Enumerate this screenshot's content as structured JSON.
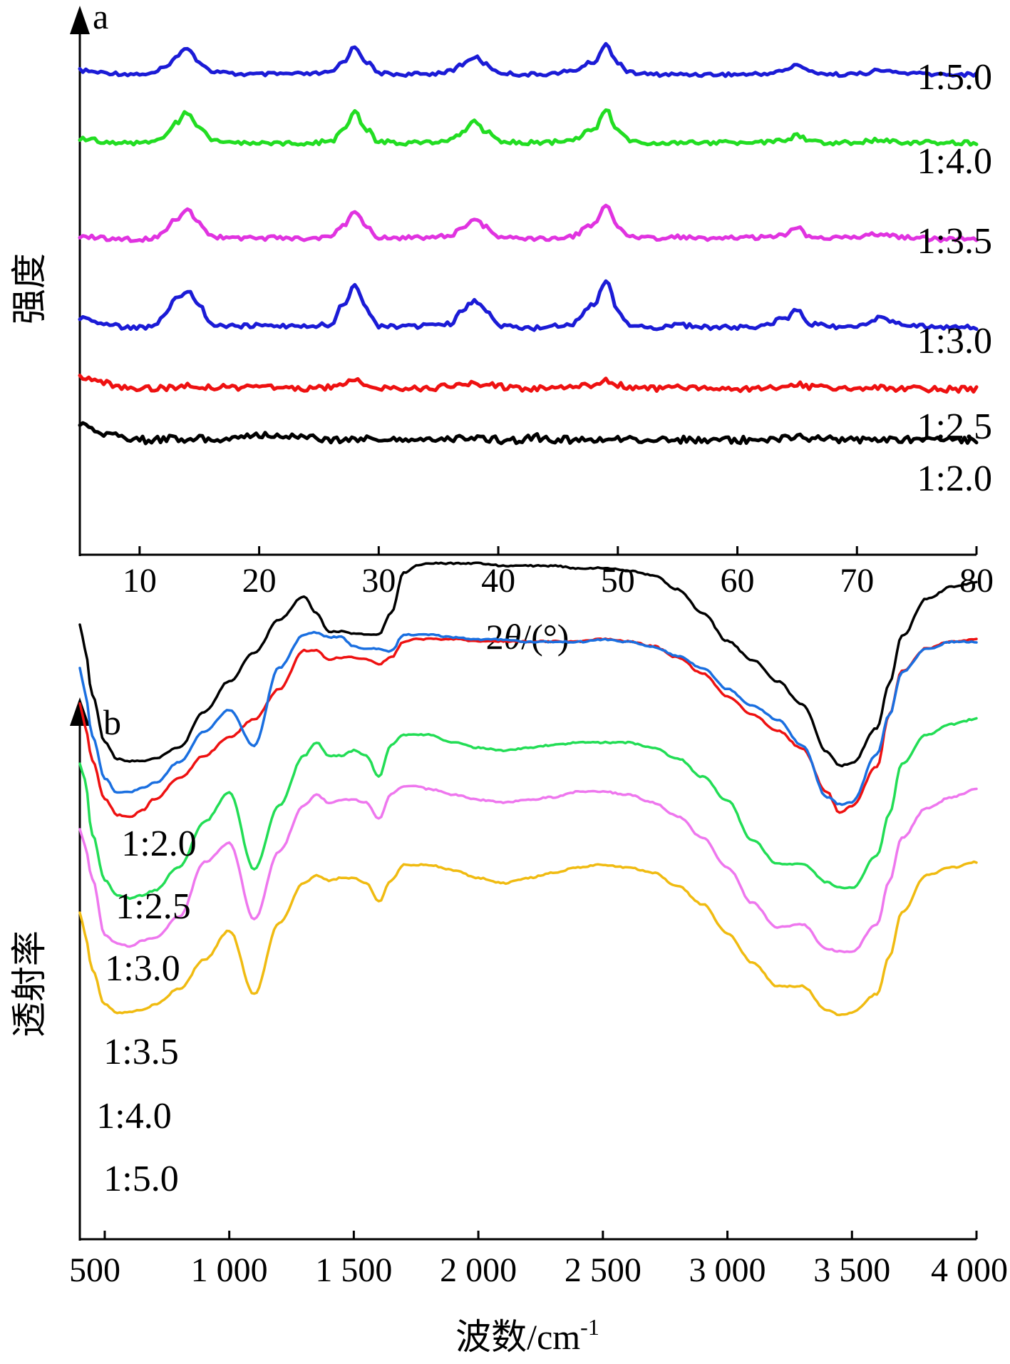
{
  "chart_data": [
    {
      "type": "line",
      "panel": "a",
      "xlabel": "2θ/(°)",
      "ylabel": "强度",
      "xlim": [
        5,
        80
      ],
      "xticks": [
        10,
        20,
        30,
        40,
        50,
        60,
        70,
        80
      ],
      "x": [
        5,
        7,
        9,
        11,
        12,
        13,
        14,
        15,
        16,
        18,
        20,
        22,
        24,
        26,
        27,
        28,
        29,
        30,
        32,
        34,
        36,
        37,
        38,
        39,
        40,
        42,
        43,
        44,
        46,
        48,
        49,
        50,
        51,
        53,
        55,
        58,
        60,
        62,
        64,
        65,
        66,
        68,
        70,
        72,
        74,
        77,
        80
      ],
      "series": [
        {
          "name": "1:5.0",
          "color": "#1b1bd6",
          "values": [
            11,
            10.5,
            10.2,
            10.2,
            11.5,
            14,
            16.5,
            13,
            10.8,
            10.2,
            10.1,
            10.2,
            10.2,
            10.5,
            13,
            16.5,
            13,
            10.4,
            10.1,
            10.2,
            10.8,
            12.5,
            14.2,
            12.5,
            10.5,
            10.1,
            10.1,
            10.2,
            10.8,
            13,
            17,
            13,
            10.5,
            10.1,
            10.1,
            10.1,
            10.1,
            10.2,
            11,
            12.5,
            10.8,
            10.1,
            10.2,
            11,
            10.4,
            10.1,
            10.1
          ]
        },
        {
          "name": "1:4.0",
          "color": "#22dd22",
          "values": [
            8,
            7.5,
            7.2,
            7.2,
            8.4,
            10.6,
            12.6,
            10.2,
            7.6,
            7.3,
            7.2,
            7.2,
            7.2,
            7.4,
            9.5,
            12.5,
            9.5,
            7.4,
            7.2,
            7.3,
            7.6,
            9,
            10.8,
            9.2,
            7.5,
            7.2,
            7.3,
            7.3,
            7.6,
            9.5,
            13,
            9.5,
            7.5,
            7.2,
            7.3,
            7.2,
            7.2,
            7.3,
            7.6,
            8.5,
            7.6,
            7.2,
            7.3,
            7.8,
            7.3,
            7.2,
            7.2
          ]
        },
        {
          "name": "1:3.5",
          "color": "#e033e0",
          "values": [
            5.4,
            5,
            4.8,
            4.8,
            6,
            8.3,
            10,
            7.6,
            5.2,
            5,
            5,
            5,
            5,
            5.2,
            7.2,
            9.8,
            7.2,
            5.1,
            5,
            5.1,
            5.5,
            7,
            8.6,
            7,
            5.2,
            4.8,
            4.8,
            4.9,
            5.3,
            7.4,
            10.5,
            7.3,
            5.2,
            5,
            5.2,
            5,
            5,
            5.1,
            5.6,
            6.8,
            5.4,
            5,
            5.1,
            5.8,
            5.1,
            4.8,
            4.8
          ]
        },
        {
          "name": "1:3.0",
          "color": "#1b1bd6",
          "values": [
            3.6,
            2.8,
            2.2,
            2.2,
            3.8,
            6.5,
            7.6,
            5.5,
            2.6,
            2.4,
            2.5,
            2.4,
            2.4,
            2.6,
            5.6,
            8.3,
            4.8,
            2.4,
            2.3,
            2.4,
            2.7,
            4.6,
            6.2,
            4.8,
            2.4,
            2.2,
            2.1,
            2.3,
            2.5,
            5.6,
            9.1,
            4.8,
            2.5,
            2.2,
            2.5,
            2.2,
            2.2,
            2.3,
            3.5,
            4.8,
            2.7,
            2.3,
            2.4,
            3.6,
            2.6,
            2.2,
            2.2
          ]
        },
        {
          "name": "1:2.5",
          "color": "#ee1111",
          "values": [
            2.7,
            1.5,
            0.6,
            0.5,
            0.6,
            0.8,
            0.9,
            0.8,
            0.7,
            0.7,
            0.7,
            0.6,
            0.5,
            0.6,
            1.5,
            2.1,
            1.5,
            0.5,
            0.4,
            0.5,
            0.8,
            1.2,
            1.4,
            1.2,
            0.8,
            0.5,
            0.4,
            0.5,
            0.6,
            1.2,
            2,
            1.2,
            0.5,
            0.4,
            0.6,
            0.5,
            0.4,
            0.5,
            0.9,
            1.5,
            0.7,
            0.5,
            0.5,
            0.6,
            0.4,
            0.3,
            0.3
          ]
        },
        {
          "name": "1:2.0",
          "color": "#000000",
          "values": [
            1.8,
            0.5,
            0.2,
            -0.1,
            0.1,
            0.2,
            0.1,
            0.1,
            0.1,
            0.2,
            0.4,
            0.5,
            0.3,
            0,
            0.1,
            0.1,
            0.1,
            0.1,
            0,
            0.1,
            0.2,
            0.1,
            0.1,
            0.1,
            0,
            0,
            0.3,
            0.1,
            0,
            0,
            0.2,
            0.1,
            0,
            0,
            0,
            0,
            0,
            0,
            0.1,
            0.2,
            0.2,
            0.1,
            0,
            0,
            0,
            0,
            0
          ]
        }
      ]
    },
    {
      "type": "line",
      "panel": "b",
      "xlabel": "波数/cm-1",
      "ylabel": "透射率",
      "xlim": [
        400,
        4000
      ],
      "xticks": [
        "500",
        "1 000",
        "1 500",
        "2 000",
        "2 500",
        "3 000",
        "3 500",
        "4 000"
      ],
      "x": [
        400,
        420,
        450,
        500,
        550,
        600,
        650,
        700,
        800,
        900,
        1000,
        1100,
        1200,
        1300,
        1350,
        1400,
        1450,
        1500,
        1550,
        1600,
        1650,
        1700,
        1750,
        1800,
        1900,
        2000,
        2100,
        2200,
        2300,
        2400,
        2500,
        2600,
        2700,
        2800,
        2900,
        3000,
        3100,
        3200,
        3300,
        3400,
        3450,
        3500,
        3600,
        3650,
        3700,
        3800,
        3900,
        4000
      ],
      "series": [
        {
          "name": "1:2.0",
          "color": "#000000",
          "values": [
            16,
            15,
            13,
            11,
            10.3,
            10.2,
            10.2,
            10.3,
            10.8,
            12.3,
            13.6,
            14.8,
            16.2,
            17.2,
            16.5,
            15.7,
            15.7,
            15.6,
            15.6,
            15.6,
            16.5,
            18.2,
            18.5,
            18.6,
            18.6,
            18.6,
            18.5,
            18.5,
            18.5,
            18.4,
            18.4,
            18.3,
            18.1,
            17.5,
            16.5,
            15.3,
            14.5,
            13.6,
            12.6,
            10.6,
            10,
            10.1,
            11.6,
            13.5,
            15.5,
            17.1,
            17.6,
            17.8
          ]
        },
        {
          "name": "1:2.5",
          "color": "#ee1111",
          "values": [
            12,
            11,
            9.5,
            7.8,
            7.1,
            7,
            7.3,
            7.8,
            8.7,
            9.7,
            10.5,
            11.3,
            12.6,
            14.3,
            14.3,
            13.9,
            14,
            14,
            13.9,
            13.7,
            14,
            14.7,
            14.8,
            14.8,
            14.8,
            14.7,
            14.7,
            14.7,
            14.7,
            14.7,
            14.8,
            14.7,
            14.5,
            14,
            13.3,
            12.3,
            11.5,
            10.8,
            10,
            8.1,
            7.2,
            7.5,
            9.2,
            11.5,
            13.4,
            14.4,
            14.7,
            14.8
          ]
        },
        {
          "name": "1:3.0",
          "color": "#1a6fe0",
          "values": [
            10.5,
            9.5,
            7.6,
            5.8,
            5.2,
            5.2,
            5.4,
            5.6,
            6.5,
            7.8,
            8.7,
            7.2,
            10.5,
            11.9,
            12,
            11.8,
            11.8,
            11.4,
            11.3,
            11.3,
            11.2,
            11.9,
            11.9,
            11.9,
            11.8,
            11.7,
            11.7,
            11.6,
            11.6,
            11.6,
            11.7,
            11.6,
            11.4,
            11,
            10.5,
            9.6,
            8.9,
            8.3,
            7.2,
            5,
            4.7,
            4.8,
            6.8,
            8.5,
            10.3,
            11.3,
            11.6,
            11.6
          ]
        },
        {
          "name": "1:3.5",
          "color": "#22dd55",
          "values": [
            8,
            7.4,
            5.3,
            3.6,
            3,
            2.9,
            3,
            3.2,
            4.1,
            5.8,
            6.9,
            4,
            6.4,
            8.3,
            8.8,
            8.3,
            8.3,
            8.5,
            8.3,
            7.5,
            8.7,
            9.1,
            9.1,
            9.1,
            8.8,
            8.6,
            8.5,
            8.6,
            8.7,
            8.8,
            8.8,
            8.8,
            8.6,
            8.2,
            7.5,
            6.6,
            5.1,
            4.2,
            4.2,
            3.5,
            3.3,
            3.3,
            4.5,
            6.1,
            8,
            9.1,
            9.5,
            9.7
          ]
        },
        {
          "name": "1:4.0",
          "color": "#ee77ee",
          "values": [
            5.8,
            5.2,
            4,
            1.9,
            1.6,
            1.5,
            1.7,
            1.8,
            2.6,
            4.6,
            5.3,
            2.5,
            5,
            6.7,
            7.1,
            6.8,
            6.9,
            6.9,
            6.8,
            6.2,
            7.1,
            7.4,
            7.4,
            7.3,
            7.1,
            6.9,
            6.8,
            6.9,
            7,
            7.2,
            7.2,
            7.1,
            6.8,
            6.3,
            5.5,
            4.4,
            3.1,
            2.2,
            2.3,
            1.4,
            1.3,
            1.3,
            2.3,
            3.9,
            5.5,
            6.6,
            7,
            7.3
          ]
        },
        {
          "name": "1:5.0",
          "color": "#f0bb11",
          "values": [
            3.8,
            3,
            1.6,
            0.3,
            0,
            0,
            0.1,
            0.3,
            0.9,
            2,
            3.1,
            0.7,
            3.4,
            4.9,
            5.2,
            5,
            5.1,
            5.1,
            4.9,
            4.2,
            5,
            5.6,
            5.6,
            5.6,
            5.4,
            5.1,
            4.9,
            5.1,
            5.3,
            5.5,
            5.6,
            5.5,
            5.3,
            4.8,
            4.1,
            3,
            1.9,
            1,
            1,
            0.1,
            -0.1,
            0,
            0.7,
            2.1,
            3.8,
            5.2,
            5.5,
            5.7
          ]
        }
      ]
    }
  ],
  "panels": {
    "a": {
      "letter": "a",
      "ylabel": "强度",
      "xlabel_prefix": "2",
      "xlabel_theta": "θ",
      "xlabel_suffix": "/(°)",
      "tick_labels": [
        "10",
        "20",
        "30",
        "40",
        "50",
        "60",
        "70",
        "80"
      ]
    },
    "b": {
      "letter": "b",
      "ylabel": "透射率",
      "xlabel_main": "波数/cm",
      "xlabel_sup": "-1",
      "tick_labels": [
        "500",
        "1 000",
        "1 500",
        "2 000",
        "2 500",
        "3 000",
        "3 500",
        "4 000"
      ]
    }
  },
  "colors": {
    "axis": "#000000"
  }
}
